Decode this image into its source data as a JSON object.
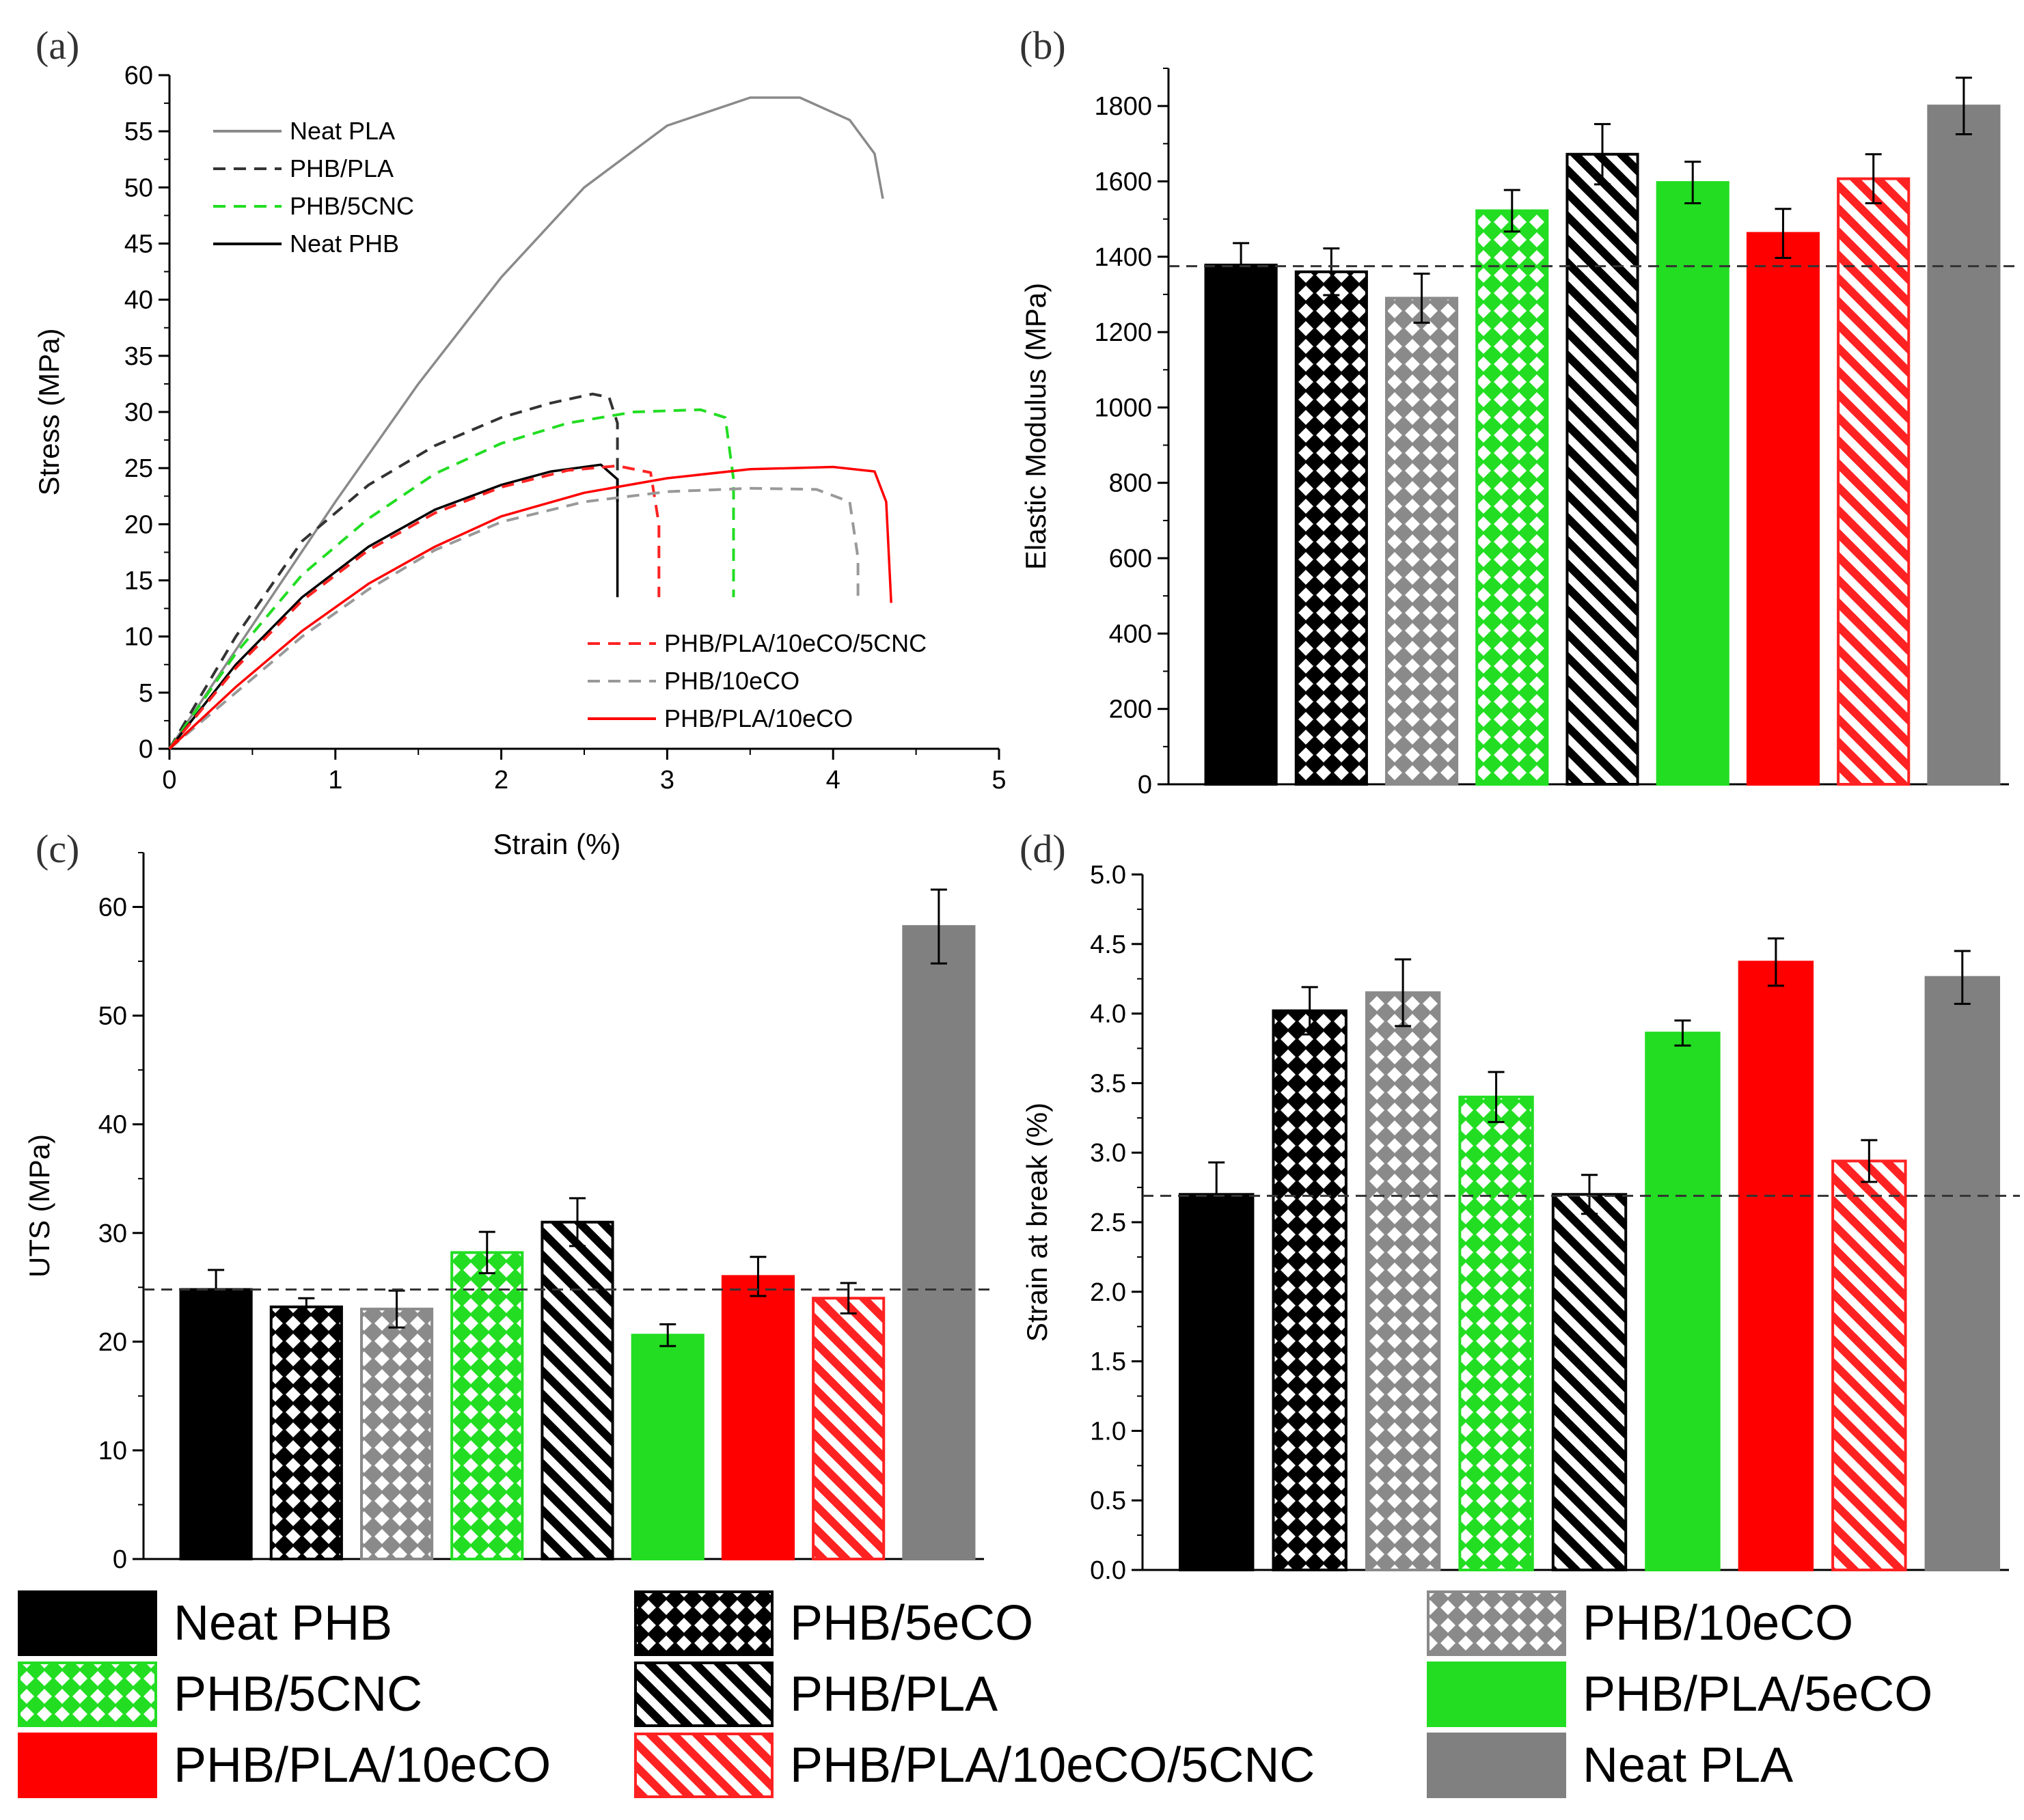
{
  "panel_labels": [
    "(a)",
    "(b)",
    "(c)",
    "(d)"
  ],
  "legend_groups": [
    {
      "name": "Neat PHB",
      "color": "#000000",
      "pattern": "solid"
    },
    {
      "name": "PHB/5eCO",
      "color": "#000000",
      "pattern": "cross"
    },
    {
      "name": "PHB/10eCO",
      "color": "#8a8a8a",
      "pattern": "cross"
    },
    {
      "name": "PHB/5CNC",
      "color": "#22dd22",
      "pattern": "cross"
    },
    {
      "name": "PHB/PLA",
      "color": "#000000",
      "pattern": "diag"
    },
    {
      "name": "PHB/PLA/5eCO",
      "color": "#22dd22",
      "pattern": "solid"
    },
    {
      "name": "PHB/PLA/10eCO",
      "color": "#ff0000",
      "pattern": "solid"
    },
    {
      "name": "PHB/PLA/10eCO/5CNC",
      "color": "#ff2222",
      "pattern": "diag"
    },
    {
      "name": "Neat PLA",
      "color": "#808080",
      "pattern": "solid"
    }
  ],
  "chart_data": [
    {
      "panel": "(a)",
      "type": "line",
      "xlabel": "Strain (%)",
      "ylabel": "Stress (MPa)",
      "xlim": [
        0,
        5
      ],
      "ylim": [
        0,
        60
      ],
      "xticks": [
        0,
        1,
        2,
        3,
        4,
        5
      ],
      "yticks": [
        0,
        5,
        10,
        15,
        20,
        25,
        30,
        35,
        40,
        45,
        50,
        55,
        60
      ],
      "legend_top_left": [
        "Neat PLA",
        "PHB/PLA",
        "PHB/5CNC",
        "Neat PHB"
      ],
      "legend_bottom_right": [
        "PHB/PLA/10eCO/5CNC",
        "PHB/10eCO",
        "PHB/PLA/10eCO"
      ],
      "series": [
        {
          "name": "Neat PLA",
          "color": "#8a8a8a",
          "dash": "solid",
          "points": [
            [
              0,
              0
            ],
            [
              0.5,
              11
            ],
            [
              1,
              22
            ],
            [
              1.5,
              32.5
            ],
            [
              2,
              42
            ],
            [
              2.5,
              50
            ],
            [
              3,
              55.5
            ],
            [
              3.5,
              58
            ],
            [
              3.8,
              58
            ],
            [
              4.1,
              56
            ],
            [
              4.25,
              53
            ],
            [
              4.3,
              49
            ]
          ]
        },
        {
          "name": "PHB/PLA",
          "color": "#333333",
          "dash": "dashed",
          "points": [
            [
              0,
              0
            ],
            [
              0.4,
              10
            ],
            [
              0.8,
              18.5
            ],
            [
              1.2,
              23.5
            ],
            [
              1.6,
              27
            ],
            [
              2,
              29.5
            ],
            [
              2.3,
              30.8
            ],
            [
              2.55,
              31.6
            ],
            [
              2.65,
              31.3
            ],
            [
              2.7,
              29
            ],
            [
              2.7,
              22
            ]
          ]
        },
        {
          "name": "PHB/5CNC",
          "color": "#22dd22",
          "dash": "dashed",
          "points": [
            [
              0,
              0
            ],
            [
              0.4,
              8.5
            ],
            [
              0.8,
              15.5
            ],
            [
              1.2,
              20.5
            ],
            [
              1.6,
              24.5
            ],
            [
              2,
              27.2
            ],
            [
              2.4,
              29
            ],
            [
              2.8,
              30
            ],
            [
              3.2,
              30.2
            ],
            [
              3.35,
              29.5
            ],
            [
              3.4,
              24
            ],
            [
              3.4,
              13.5
            ]
          ]
        },
        {
          "name": "Neat PHB",
          "color": "#000000",
          "dash": "solid",
          "points": [
            [
              0,
              0
            ],
            [
              0.4,
              7.5
            ],
            [
              0.8,
              13.5
            ],
            [
              1.2,
              18
            ],
            [
              1.6,
              21.3
            ],
            [
              2,
              23.5
            ],
            [
              2.3,
              24.7
            ],
            [
              2.6,
              25.3
            ],
            [
              2.7,
              24
            ],
            [
              2.7,
              13.5
            ]
          ]
        },
        {
          "name": "PHB/PLA/10eCO/5CNC",
          "color": "#ff2222",
          "dash": "dashed",
          "points": [
            [
              0,
              0
            ],
            [
              0.4,
              7.2
            ],
            [
              0.8,
              13.2
            ],
            [
              1.2,
              17.7
            ],
            [
              1.6,
              21
            ],
            [
              2,
              23.3
            ],
            [
              2.4,
              24.8
            ],
            [
              2.7,
              25.2
            ],
            [
              2.9,
              24.6
            ],
            [
              2.95,
              20
            ],
            [
              2.95,
              13.5
            ]
          ]
        },
        {
          "name": "PHB/10eCO",
          "color": "#999999",
          "dash": "dashed",
          "points": [
            [
              0,
              0
            ],
            [
              0.4,
              5
            ],
            [
              0.8,
              10
            ],
            [
              1.2,
              14.2
            ],
            [
              1.6,
              17.7
            ],
            [
              2,
              20.2
            ],
            [
              2.5,
              22
            ],
            [
              3,
              22.9
            ],
            [
              3.5,
              23.2
            ],
            [
              3.9,
              23.1
            ],
            [
              4.1,
              22
            ],
            [
              4.15,
              17
            ],
            [
              4.15,
              13.5
            ]
          ]
        },
        {
          "name": "PHB/PLA/10eCO",
          "color": "#ff0000",
          "dash": "solid",
          "points": [
            [
              0,
              0
            ],
            [
              0.4,
              5.5
            ],
            [
              0.8,
              10.5
            ],
            [
              1.2,
              14.7
            ],
            [
              1.6,
              18
            ],
            [
              2,
              20.7
            ],
            [
              2.5,
              22.8
            ],
            [
              3,
              24.1
            ],
            [
              3.5,
              24.9
            ],
            [
              4,
              25.1
            ],
            [
              4.25,
              24.7
            ],
            [
              4.32,
              22
            ],
            [
              4.35,
              13
            ]
          ]
        }
      ]
    },
    {
      "panel": "(b)",
      "type": "bar",
      "ylabel": "Elastic Modulus (MPa)",
      "ylim": [
        0,
        1900
      ],
      "yticks": [
        0,
        200,
        400,
        600,
        800,
        1000,
        1200,
        1400,
        1600,
        1800
      ],
      "reference_line": 1375,
      "values": [
        1378,
        1360,
        1290,
        1522,
        1672,
        1597,
        1462,
        1607,
        1800
      ],
      "errors": [
        58,
        62,
        65,
        55,
        80,
        55,
        65,
        65,
        75
      ]
    },
    {
      "panel": "(c)",
      "type": "bar",
      "ylabel": "UTS (MPa)",
      "ylim": [
        0,
        65
      ],
      "yticks": [
        0,
        10,
        20,
        30,
        40,
        50,
        60
      ],
      "reference_line": 24.8,
      "values": [
        24.8,
        23.2,
        23.0,
        28.2,
        31.0,
        20.6,
        26.0,
        24.0,
        58.2
      ],
      "errors": [
        1.8,
        0.8,
        1.7,
        1.9,
        2.2,
        1.0,
        1.8,
        1.4,
        3.4
      ]
    },
    {
      "panel": "(d)",
      "type": "bar",
      "ylabel": "Strain at break (%)",
      "ylim": [
        0,
        5
      ],
      "yticks": [
        "0.0",
        "0.5",
        "1.0",
        "1.5",
        "2.0",
        "2.5",
        "3.0",
        "3.5",
        "4.0",
        "4.5",
        "5.0"
      ],
      "reference_line": 2.69,
      "values": [
        2.7,
        4.02,
        4.15,
        3.4,
        2.7,
        3.86,
        4.37,
        2.94,
        4.26
      ],
      "errors": [
        0.23,
        0.17,
        0.24,
        0.18,
        0.14,
        0.09,
        0.17,
        0.15,
        0.19
      ]
    }
  ]
}
